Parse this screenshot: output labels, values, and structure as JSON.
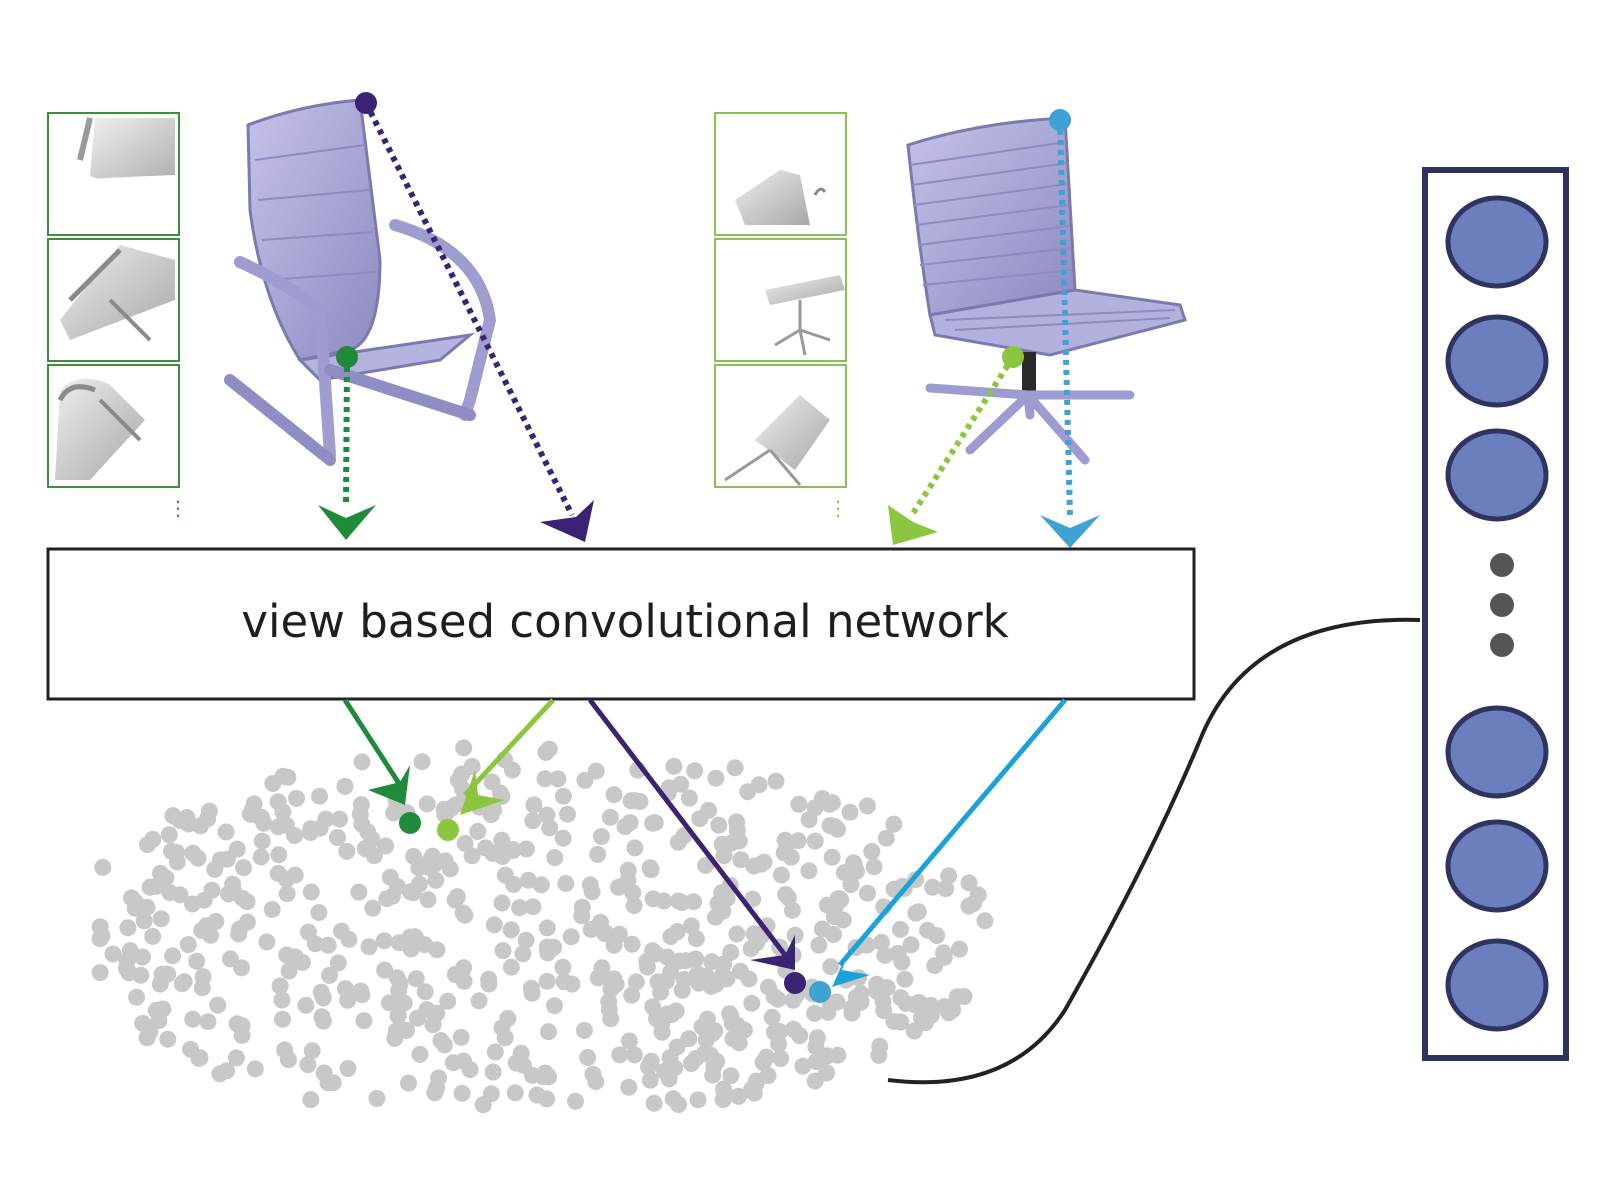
{
  "network_box": {
    "label": "view based convolutional network"
  },
  "colors": {
    "dark_green": "#1f8a3a",
    "light_green": "#8cc63f",
    "dark_purple": "#3b2273",
    "light_blue": "#3ea2d4",
    "arrow_blue": "#1aa3d9",
    "view_frame_green": "#3d8f3a",
    "view_frame_light": "#8cbf55",
    "chair_body": "#a9a7d6",
    "embedding_dot": "#c8c8c8",
    "feature_node": "#6b7fbf",
    "feature_border": "#2e3360",
    "connector": "#222222"
  },
  "icons": {
    "chair_left": "armchair-icon",
    "chair_right": "office-chair-icon",
    "view_thumbnail": "chair-view-icon",
    "feature_node": "neuron-icon"
  },
  "feature_vector": {
    "node_count_top": 3,
    "node_count_bottom": 3,
    "ellipsis_dots": 3
  }
}
